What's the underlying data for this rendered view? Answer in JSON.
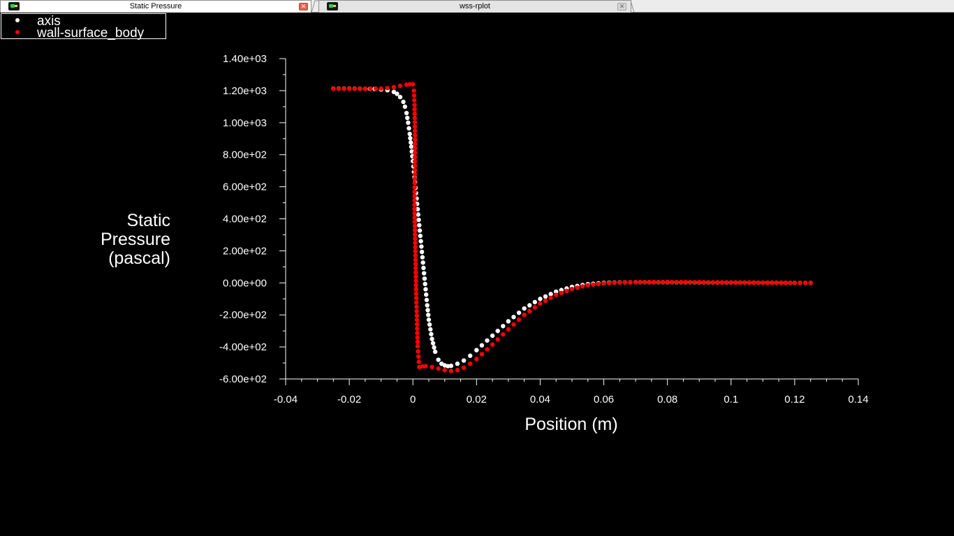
{
  "tabs": [
    {
      "label": "Static Pressure",
      "active": true
    },
    {
      "label": "wss-rplot",
      "active": false
    }
  ],
  "colors": {
    "background": "#000000",
    "axis": "#ffffff",
    "axis_series": "#ffffff",
    "wall_series": "#ff0000"
  },
  "chart_data": {
    "type": "scatter",
    "title": "",
    "xlabel": "Position (m)",
    "ylabel": [
      "Static",
      "Pressure",
      "(pascal)"
    ],
    "xlim": [
      -0.04,
      0.14
    ],
    "ylim": [
      -600,
      1400
    ],
    "x_ticks": [
      -0.04,
      -0.02,
      0,
      0.02,
      0.04,
      0.06,
      0.08,
      0.1,
      0.12,
      0.14
    ],
    "x_tick_labels": [
      "-0.04",
      "-0.02",
      "0",
      "0.02",
      "0.04",
      "0.06",
      "0.08",
      "0.1",
      "0.12",
      "0.14"
    ],
    "y_ticks": [
      1400,
      1200,
      1000,
      800,
      600,
      400,
      200,
      0,
      -200,
      -400,
      -600
    ],
    "y_tick_labels": [
      "1.40e+03",
      "1.20e+03",
      "1.00e+03",
      "8.00e+02",
      "6.00e+02",
      "4.00e+02",
      "2.00e+02",
      "0.00e+00",
      "-2.00e+02",
      "-4.00e+02",
      "-6.00e+02"
    ],
    "legend": {
      "placement": "top-left"
    },
    "series": [
      {
        "name": "axis",
        "color": "#ffffff",
        "points": [
          [
            -0.025,
            1213
          ],
          [
            -0.02,
            1213
          ],
          [
            -0.015,
            1212
          ],
          [
            -0.012,
            1211
          ],
          [
            -0.01,
            1208
          ],
          [
            -0.008,
            1203
          ],
          [
            -0.006,
            1192
          ],
          [
            -0.005,
            1180
          ],
          [
            -0.004,
            1160
          ],
          [
            -0.003,
            1130
          ],
          [
            -0.0025,
            1100
          ],
          [
            -0.002,
            1060
          ],
          [
            -0.0015,
            1000
          ],
          [
            -0.001,
            930
          ],
          [
            -0.0005,
            850
          ],
          [
            0,
            760
          ],
          [
            0.0005,
            660
          ],
          [
            0.001,
            560
          ],
          [
            0.0015,
            460
          ],
          [
            0.002,
            360
          ],
          [
            0.0025,
            260
          ],
          [
            0.003,
            160
          ],
          [
            0.0035,
            60
          ],
          [
            0.004,
            -40
          ],
          [
            0.0045,
            -140
          ],
          [
            0.005,
            -230
          ],
          [
            0.006,
            -350
          ],
          [
            0.007,
            -430
          ],
          [
            0.008,
            -480
          ],
          [
            0.009,
            -505
          ],
          [
            0.01,
            -515
          ],
          [
            0.011,
            -520
          ],
          [
            0.012,
            -518
          ],
          [
            0.014,
            -505
          ],
          [
            0.016,
            -485
          ],
          [
            0.018,
            -455
          ],
          [
            0.02,
            -420
          ],
          [
            0.025,
            -330
          ],
          [
            0.03,
            -240
          ],
          [
            0.035,
            -160
          ],
          [
            0.04,
            -100
          ],
          [
            0.045,
            -55
          ],
          [
            0.05,
            -25
          ],
          [
            0.055,
            -8
          ],
          [
            0.06,
            0
          ],
          [
            0.065,
            3
          ],
          [
            0.07,
            4
          ],
          [
            0.08,
            4
          ],
          [
            0.09,
            3
          ],
          [
            0.1,
            2
          ],
          [
            0.11,
            1
          ],
          [
            0.12,
            0
          ],
          [
            0.125,
            0
          ]
        ]
      },
      {
        "name": "wall-surface_body",
        "color": "#ff0000",
        "points": [
          [
            -0.025,
            1212
          ],
          [
            -0.02,
            1212
          ],
          [
            -0.015,
            1212
          ],
          [
            -0.01,
            1213
          ],
          [
            -0.008,
            1216
          ],
          [
            -0.006,
            1222
          ],
          [
            -0.004,
            1230
          ],
          [
            -0.002,
            1237
          ],
          [
            -0.001,
            1240
          ],
          [
            0,
            1240
          ],
          [
            0.0003,
            1200
          ],
          [
            0.0005,
            1110
          ],
          [
            0.0007,
            895
          ],
          [
            0.0005,
            460
          ],
          [
            0.001,
            -40
          ],
          [
            0.0015,
            -395
          ],
          [
            0.002,
            -525
          ],
          [
            0.003,
            -522
          ],
          [
            0.004,
            -520
          ],
          [
            0.006,
            -525
          ],
          [
            0.008,
            -535
          ],
          [
            0.01,
            -545
          ],
          [
            0.012,
            -550
          ],
          [
            0.014,
            -545
          ],
          [
            0.016,
            -530
          ],
          [
            0.018,
            -505
          ],
          [
            0.02,
            -475
          ],
          [
            0.025,
            -385
          ],
          [
            0.03,
            -290
          ],
          [
            0.035,
            -200
          ],
          [
            0.04,
            -130
          ],
          [
            0.045,
            -75
          ],
          [
            0.05,
            -38
          ],
          [
            0.055,
            -14
          ],
          [
            0.06,
            -3
          ],
          [
            0.065,
            2
          ],
          [
            0.07,
            4
          ],
          [
            0.08,
            5
          ],
          [
            0.09,
            4
          ],
          [
            0.1,
            2
          ],
          [
            0.11,
            1
          ],
          [
            0.12,
            0
          ],
          [
            0.125,
            0
          ]
        ]
      }
    ]
  }
}
